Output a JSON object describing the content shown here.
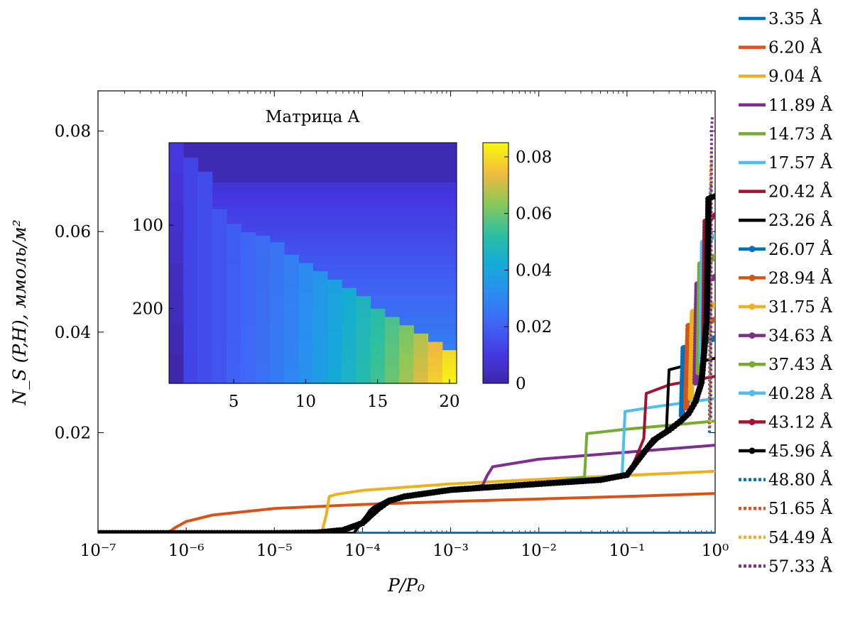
{
  "chart_data": [
    {
      "type": "line",
      "xlabel": "P/P₀",
      "ylabel": "N_S (P,H), ммоль/м²",
      "xscale": "log",
      "xlim": [
        1e-07,
        1.0
      ],
      "ylim": [
        0.0,
        0.088
      ],
      "x_ticks": [
        1e-07,
        1e-06,
        1e-05,
        0.0001,
        0.001,
        0.01,
        0.1,
        1
      ],
      "x_tick_labels": [
        "10⁻⁷",
        "10⁻⁶",
        "10⁻⁵",
        "10⁻⁴",
        "10⁻³",
        "10⁻²",
        "10⁻¹",
        "10⁰"
      ],
      "y_ticks": [
        0.02,
        0.04,
        0.06,
        0.08
      ],
      "y_tick_labels": [
        "0.02",
        "0.04",
        "0.06",
        "0.08"
      ],
      "grid": false,
      "legend_position": "outside-right",
      "series": [
        {
          "name": "3.35 Å",
          "color": "#0072BD",
          "style": "solid",
          "marker": false,
          "points": [
            [
              1e-07,
              0
            ],
            [
              1,
              0
            ]
          ]
        },
        {
          "name": "6.20 Å",
          "color": "#D95319",
          "style": "solid",
          "marker": false,
          "points": [
            [
              1e-07,
              0
            ],
            [
              5.5e-07,
              0
            ],
            [
              6.5e-07,
              0.0003
            ],
            [
              7.5e-07,
              0.0011
            ],
            [
              1e-06,
              0.0023
            ],
            [
              2e-06,
              0.0036
            ],
            [
              1e-05,
              0.0049
            ],
            [
              0.0001,
              0.0057
            ],
            [
              0.001,
              0.0063
            ],
            [
              0.01,
              0.0068
            ],
            [
              0.1,
              0.0073
            ],
            [
              1,
              0.0079
            ]
          ]
        },
        {
          "name": "9.04 Å",
          "color": "#EDB120",
          "style": "solid",
          "marker": false,
          "points": [
            [
              1e-07,
              0
            ],
            [
              3.3e-05,
              0
            ],
            [
              3.5e-05,
              0.0005
            ],
            [
              3.9e-05,
              0.0038
            ],
            [
              4.2e-05,
              0.0073
            ],
            [
              5e-05,
              0.0077
            ],
            [
              0.0001,
              0.0085
            ],
            [
              0.001,
              0.0098
            ],
            [
              0.01,
              0.0107
            ],
            [
              0.1,
              0.0115
            ],
            [
              1,
              0.0123
            ]
          ]
        },
        {
          "name": "11.89 Å",
          "color": "#7E2F8E",
          "style": "solid",
          "marker": false,
          "points": [
            [
              1e-07,
              0
            ],
            [
              8e-05,
              0
            ],
            [
              0.0001,
              0.0022
            ],
            [
              0.00012,
              0.0045
            ],
            [
              0.00015,
              0.0058
            ],
            [
              0.0003,
              0.0072
            ],
            [
              0.001,
              0.0085
            ],
            [
              0.0023,
              0.0095
            ],
            [
              0.0026,
              0.0115
            ],
            [
              0.003,
              0.0132
            ],
            [
              0.01,
              0.0147
            ],
            [
              0.1,
              0.0161
            ],
            [
              1,
              0.0175
            ]
          ]
        },
        {
          "name": "14.73 Å",
          "color": "#77AC30",
          "style": "solid",
          "marker": false,
          "points": [
            [
              1e-07,
              0
            ],
            [
              8e-05,
              0
            ],
            [
              0.0001,
              0.0025
            ],
            [
              0.00013,
              0.005
            ],
            [
              0.0002,
              0.0068
            ],
            [
              0.001,
              0.0085
            ],
            [
              0.01,
              0.0098
            ],
            [
              0.033,
              0.0112
            ],
            [
              0.035,
              0.0198
            ],
            [
              0.1,
              0.0207
            ],
            [
              1,
              0.0223
            ]
          ]
        },
        {
          "name": "17.57 Å",
          "color": "#4DBEEE",
          "style": "solid",
          "marker": false,
          "points": [
            [
              1e-07,
              0
            ],
            [
              8e-05,
              0
            ],
            [
              0.0001,
              0.0025
            ],
            [
              0.00013,
              0.005
            ],
            [
              0.0002,
              0.0068
            ],
            [
              0.001,
              0.0085
            ],
            [
              0.01,
              0.0098
            ],
            [
              0.088,
              0.0115
            ],
            [
              0.095,
              0.0242
            ],
            [
              0.2,
              0.0251
            ],
            [
              1,
              0.0268
            ]
          ]
        },
        {
          "name": "20.42 Å",
          "color": "#A2142F",
          "style": "solid",
          "marker": false,
          "points": [
            [
              1e-07,
              0
            ],
            [
              8e-05,
              0
            ],
            [
              0.0001,
              0.0025
            ],
            [
              0.00013,
              0.005
            ],
            [
              0.0002,
              0.0068
            ],
            [
              0.001,
              0.0085
            ],
            [
              0.01,
              0.0098
            ],
            [
              0.1,
              0.0113
            ],
            [
              0.125,
              0.0148
            ],
            [
              0.155,
              0.0188
            ],
            [
              0.165,
              0.0278
            ],
            [
              0.3,
              0.0295
            ],
            [
              1,
              0.0312
            ]
          ]
        },
        {
          "name": "23.26 Å",
          "color": "#000000",
          "style": "solid",
          "marker": false,
          "points": [
            [
              1e-07,
              0
            ],
            [
              8e-05,
              0
            ],
            [
              0.0001,
              0.0025
            ],
            [
              0.00013,
              0.005
            ],
            [
              0.0002,
              0.0068
            ],
            [
              0.001,
              0.0085
            ],
            [
              0.01,
              0.0098
            ],
            [
              0.1,
              0.0113
            ],
            [
              0.13,
              0.0145
            ],
            [
              0.2,
              0.0178
            ],
            [
              0.28,
              0.0205
            ],
            [
              0.3,
              0.0325
            ],
            [
              0.5,
              0.0335
            ],
            [
              1,
              0.0348
            ]
          ]
        },
        {
          "name": "26.07 Å",
          "color": "#0072BD",
          "style": "solid",
          "marker": true,
          "points": [
            [
              0.42,
              0.0235
            ],
            [
              0.44,
              0.0368
            ],
            [
              0.6,
              0.0375
            ],
            [
              1,
              0.0388
            ]
          ]
        },
        {
          "name": "28.94 Å",
          "color": "#D95319",
          "style": "solid",
          "marker": true,
          "points": [
            [
              0.47,
              0.025
            ],
            [
              0.5,
              0.0412
            ],
            [
              0.7,
              0.0418
            ],
            [
              1,
              0.0425
            ]
          ]
        },
        {
          "name": "31.75 Å",
          "color": "#EDB120",
          "style": "solid",
          "marker": true,
          "points": [
            [
              0.53,
              0.027
            ],
            [
              0.56,
              0.044
            ],
            [
              0.75,
              0.0446
            ],
            [
              1,
              0.0455
            ]
          ]
        },
        {
          "name": "34.63 Å",
          "color": "#7E2F8E",
          "style": "solid",
          "marker": true,
          "points": [
            [
              0.6,
              0.03
            ],
            [
              0.63,
              0.0495
            ],
            [
              0.8,
              0.0502
            ],
            [
              1,
              0.051
            ]
          ]
        },
        {
          "name": "37.43 Å",
          "color": "#77AC30",
          "style": "solid",
          "marker": true,
          "points": [
            [
              0.65,
              0.032
            ],
            [
              0.68,
              0.0535
            ],
            [
              0.85,
              0.0542
            ],
            [
              1,
              0.055
            ]
          ]
        },
        {
          "name": "40.28 Å",
          "color": "#4DBEEE",
          "style": "solid",
          "marker": true,
          "points": [
            [
              0.7,
              0.034
            ],
            [
              0.73,
              0.0578
            ],
            [
              0.88,
              0.0585
            ],
            [
              1,
              0.059
            ]
          ]
        },
        {
          "name": "43.12 Å",
          "color": "#A2142F",
          "style": "solid",
          "marker": true,
          "points": [
            [
              0.75,
              0.036
            ],
            [
              0.78,
              0.062
            ],
            [
              0.9,
              0.0628
            ],
            [
              1,
              0.0632
            ]
          ]
        },
        {
          "name": "45.96 Å",
          "color": "#000000",
          "style": "solid",
          "marker": true,
          "points": [
            [
              1e-07,
              0
            ],
            [
              1e-06,
              0
            ],
            [
              1e-05,
              0
            ],
            [
              3e-05,
              0.0001
            ],
            [
              6e-05,
              0.0006
            ],
            [
              0.0001,
              0.002
            ],
            [
              0.00015,
              0.0048
            ],
            [
              0.0002,
              0.0064
            ],
            [
              0.0003,
              0.0073
            ],
            [
              0.001,
              0.0086
            ],
            [
              0.01,
              0.0098
            ],
            [
              0.05,
              0.0106
            ],
            [
              0.1,
              0.0116
            ],
            [
              0.14,
              0.015
            ],
            [
              0.2,
              0.0185
            ],
            [
              0.3,
              0.0205
            ],
            [
              0.4,
              0.0222
            ],
            [
              0.5,
              0.0238
            ],
            [
              0.6,
              0.0262
            ],
            [
              0.7,
              0.03
            ],
            [
              0.75,
              0.036
            ],
            [
              0.8,
              0.042
            ],
            [
              0.82,
              0.0525
            ],
            [
              0.84,
              0.0665
            ],
            [
              0.9,
              0.0668
            ],
            [
              1,
              0.067
            ]
          ]
        },
        {
          "name": "48.80 Å",
          "color": "#0072BD",
          "style": "dotted",
          "marker": false,
          "points": [
            [
              0.86,
              0.02
            ],
            [
              0.88,
              0.068
            ],
            [
              0.9,
              0.07
            ]
          ]
        },
        {
          "name": "51.65 Å",
          "color": "#D95319",
          "style": "dotted",
          "marker": false,
          "points": [
            [
              0.87,
              0.021
            ],
            [
              0.89,
              0.072
            ],
            [
              0.91,
              0.074
            ]
          ]
        },
        {
          "name": "54.49 Å",
          "color": "#EDB120",
          "style": "dotted",
          "marker": false,
          "points": [
            [
              0.88,
              0.022
            ],
            [
              0.9,
              0.075
            ],
            [
              0.92,
              0.077
            ]
          ]
        },
        {
          "name": "57.33 Å",
          "color": "#7E2F8E",
          "style": "dotted",
          "marker": false,
          "points": [
            [
              0.89,
              0.023
            ],
            [
              0.91,
              0.08
            ],
            [
              0.93,
              0.083
            ]
          ]
        }
      ]
    },
    {
      "type": "heatmap",
      "title": "Матрица A",
      "colormap": "parula",
      "xlim": [
        0.5,
        20.5
      ],
      "x_ticks": [
        5,
        10,
        15,
        20
      ],
      "x_tick_labels": [
        "5",
        "10",
        "15",
        "20"
      ],
      "ylim": [
        1,
        290
      ],
      "y_ticks": [
        100,
        200
      ],
      "y_tick_labels": [
        "100",
        "200"
      ],
      "y_reversed": true,
      "colorbar_range": [
        0,
        0.085
      ],
      "colorbar_ticks": [
        0,
        0.02,
        0.04,
        0.06,
        0.08
      ],
      "colorbar_tick_labels": [
        "0",
        "0.02",
        "0.04",
        "0.06",
        "0.08"
      ],
      "columns": [
        {
          "col": 1,
          "top_value": 0.01,
          "bottom_value": 0.0,
          "start_row": 0
        },
        {
          "col": 2,
          "top_value": 0.013,
          "bottom_value": 0.013,
          "start_row": 18
        },
        {
          "col": 3,
          "top_value": 0.015,
          "bottom_value": 0.015,
          "start_row": 35
        },
        {
          "col": 4,
          "top_value": 0.017,
          "bottom_value": 0.017,
          "start_row": 80
        },
        {
          "col": 5,
          "top_value": 0.019,
          "bottom_value": 0.02,
          "start_row": 98
        },
        {
          "col": 6,
          "top_value": 0.021,
          "bottom_value": 0.022,
          "start_row": 108
        },
        {
          "col": 7,
          "top_value": 0.023,
          "bottom_value": 0.024,
          "start_row": 112
        },
        {
          "col": 8,
          "top_value": 0.025,
          "bottom_value": 0.027,
          "start_row": 120
        },
        {
          "col": 9,
          "top_value": 0.028,
          "bottom_value": 0.03,
          "start_row": 135
        },
        {
          "col": 10,
          "top_value": 0.031,
          "bottom_value": 0.034,
          "start_row": 145
        },
        {
          "col": 11,
          "top_value": 0.035,
          "bottom_value": 0.038,
          "start_row": 155
        },
        {
          "col": 12,
          "top_value": 0.039,
          "bottom_value": 0.042,
          "start_row": 165
        },
        {
          "col": 13,
          "top_value": 0.043,
          "bottom_value": 0.046,
          "start_row": 175
        },
        {
          "col": 14,
          "top_value": 0.047,
          "bottom_value": 0.05,
          "start_row": 185
        },
        {
          "col": 15,
          "top_value": 0.051,
          "bottom_value": 0.055,
          "start_row": 200
        },
        {
          "col": 16,
          "top_value": 0.056,
          "bottom_value": 0.06,
          "start_row": 210
        },
        {
          "col": 17,
          "top_value": 0.061,
          "bottom_value": 0.066,
          "start_row": 220
        },
        {
          "col": 18,
          "top_value": 0.067,
          "bottom_value": 0.072,
          "start_row": 230
        },
        {
          "col": 19,
          "top_value": 0.073,
          "bottom_value": 0.078,
          "start_row": 240
        },
        {
          "col": 20,
          "top_value": 0.079,
          "bottom_value": 0.084,
          "start_row": 250
        }
      ],
      "background_top_value": 0.002,
      "background_top_rows": 50,
      "background_value_top": 0.008,
      "background_value_bottom": 0.032
    }
  ]
}
